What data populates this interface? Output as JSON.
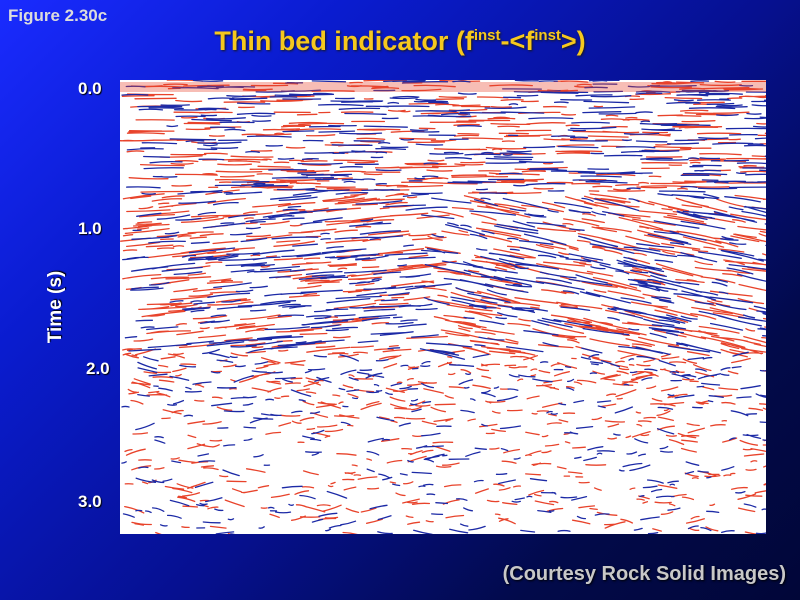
{
  "figure_label": "Figure 2.30c",
  "title": {
    "prefix": "Thin bed indicator (f",
    "sup1": "inst",
    "middle": "-<f",
    "sup2": "inst",
    "suffix": ">)"
  },
  "axis": {
    "ylabel": "Time  (s)",
    "ticks": [
      "0.0",
      "1.0",
      "2.0",
      "3.0"
    ]
  },
  "image": {
    "description_name": "seismic-section",
    "colors": {
      "positive": "#e8432b",
      "negative": "#1c2aa6",
      "background": "#ffffff"
    }
  },
  "courtesy": "(Courtesy Rock Solid Images)"
}
